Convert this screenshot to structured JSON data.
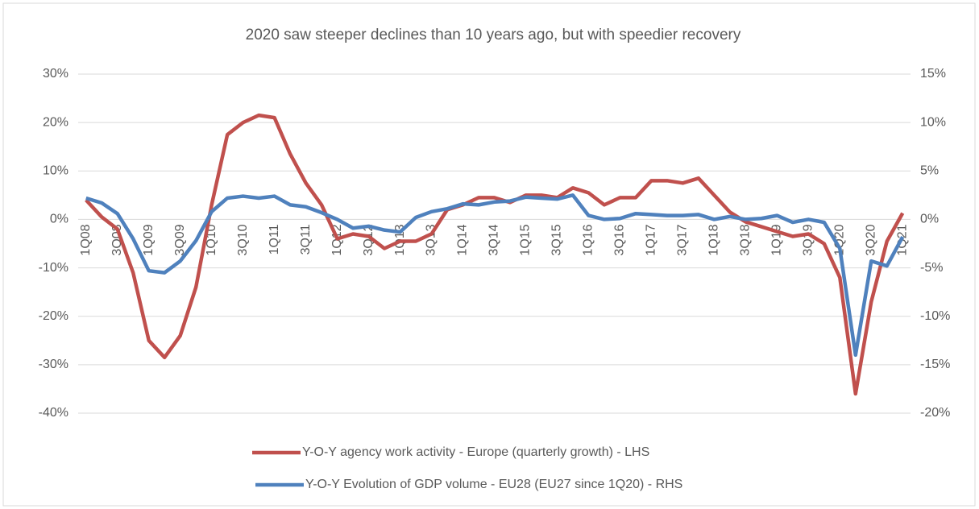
{
  "chart_data": {
    "type": "line",
    "title": "2020 saw steeper declines than 10 years ago, but with speedier recovery",
    "categories": [
      "1Q08",
      null,
      "3Q08",
      null,
      "1Q09",
      null,
      "3Q09",
      null,
      "1Q10",
      null,
      "3Q10",
      null,
      "1Q11",
      null,
      "3Q11",
      null,
      "1Q12",
      null,
      "3Q12",
      null,
      "1Q13",
      null,
      "3Q13",
      null,
      "1Q14",
      null,
      "3Q14",
      null,
      "1Q15",
      null,
      "3Q15",
      null,
      "1Q16",
      null,
      "3Q16",
      null,
      "1Q17",
      null,
      "3Q17",
      null,
      "1Q18",
      null,
      "3Q18",
      null,
      "1Q19",
      null,
      "3Q19",
      null,
      "1Q20",
      null,
      "3Q20",
      null,
      "1Q21"
    ],
    "series": [
      {
        "name": "Y-O-Y agency work activity - Europe (quarterly growth) - LHS",
        "color": "#c0504d",
        "values": [
          4,
          0.5,
          -2,
          -11,
          -25,
          -28.5,
          -24,
          -14,
          3,
          17.5,
          20,
          21.5,
          21,
          13.5,
          7.5,
          3,
          -4,
          -3,
          -3.5,
          -6,
          -4.5,
          -4.5,
          -3,
          2,
          3,
          4.5,
          4.5,
          3.5,
          5,
          5,
          4.5,
          6.5,
          5.5,
          3,
          4.5,
          4.5,
          8,
          8,
          7.5,
          8.5,
          5,
          1.5,
          -0.5,
          -1.5,
          -2.5,
          -3.5,
          -3,
          -5,
          -12,
          -36,
          -17,
          -4.5,
          1.3
        ]
      },
      {
        "name": "Y-O-Y Evolution of GDP volume - EU28 (EU27 since 1Q20) - RHS",
        "color": "#4f81bd",
        "axis": "y2",
        "values": [
          2.2,
          1.7,
          0.6,
          -2,
          -5.3,
          -5.5,
          -4.3,
          -2.2,
          0.8,
          2.2,
          2.4,
          2.2,
          2.4,
          1.5,
          1.3,
          0.7,
          0,
          -0.9,
          -0.7,
          -1.1,
          -1.3,
          0.2,
          0.8,
          1.1,
          1.6,
          1.5,
          1.8,
          1.9,
          2.3,
          2.2,
          2.1,
          2.5,
          0.4,
          0,
          0.1,
          0.6,
          0.5,
          0.4,
          0.4,
          0.5,
          0,
          0.3,
          0,
          0.1,
          0.4,
          -0.3,
          0,
          -0.3,
          -3,
          -14,
          -4.3,
          -4.8,
          -1.8
        ]
      }
    ],
    "ylim": [
      -40,
      30
    ],
    "yticks": [
      {
        "value": -40,
        "label": "-40%"
      },
      {
        "value": -30,
        "label": "-30%"
      },
      {
        "value": -20,
        "label": "-20%"
      },
      {
        "value": -10,
        "label": "-10%"
      },
      {
        "value": 0,
        "label": "0%"
      },
      {
        "value": 10,
        "label": "10%"
      },
      {
        "value": 20,
        "label": "20%"
      },
      {
        "value": 30,
        "label": "30%"
      }
    ],
    "y2lim": [
      -20,
      15
    ],
    "y2ticks": [
      {
        "value": -20,
        "label": "-20%"
      },
      {
        "value": -15,
        "label": "-15%"
      },
      {
        "value": -10,
        "label": "-10%"
      },
      {
        "value": -5,
        "label": "-5%"
      },
      {
        "value": 0,
        "label": "0%"
      },
      {
        "value": 5,
        "label": "5%"
      },
      {
        "value": 10,
        "label": "10%"
      },
      {
        "value": 15,
        "label": "15%"
      }
    ],
    "grid": true,
    "legend": "bottom"
  }
}
